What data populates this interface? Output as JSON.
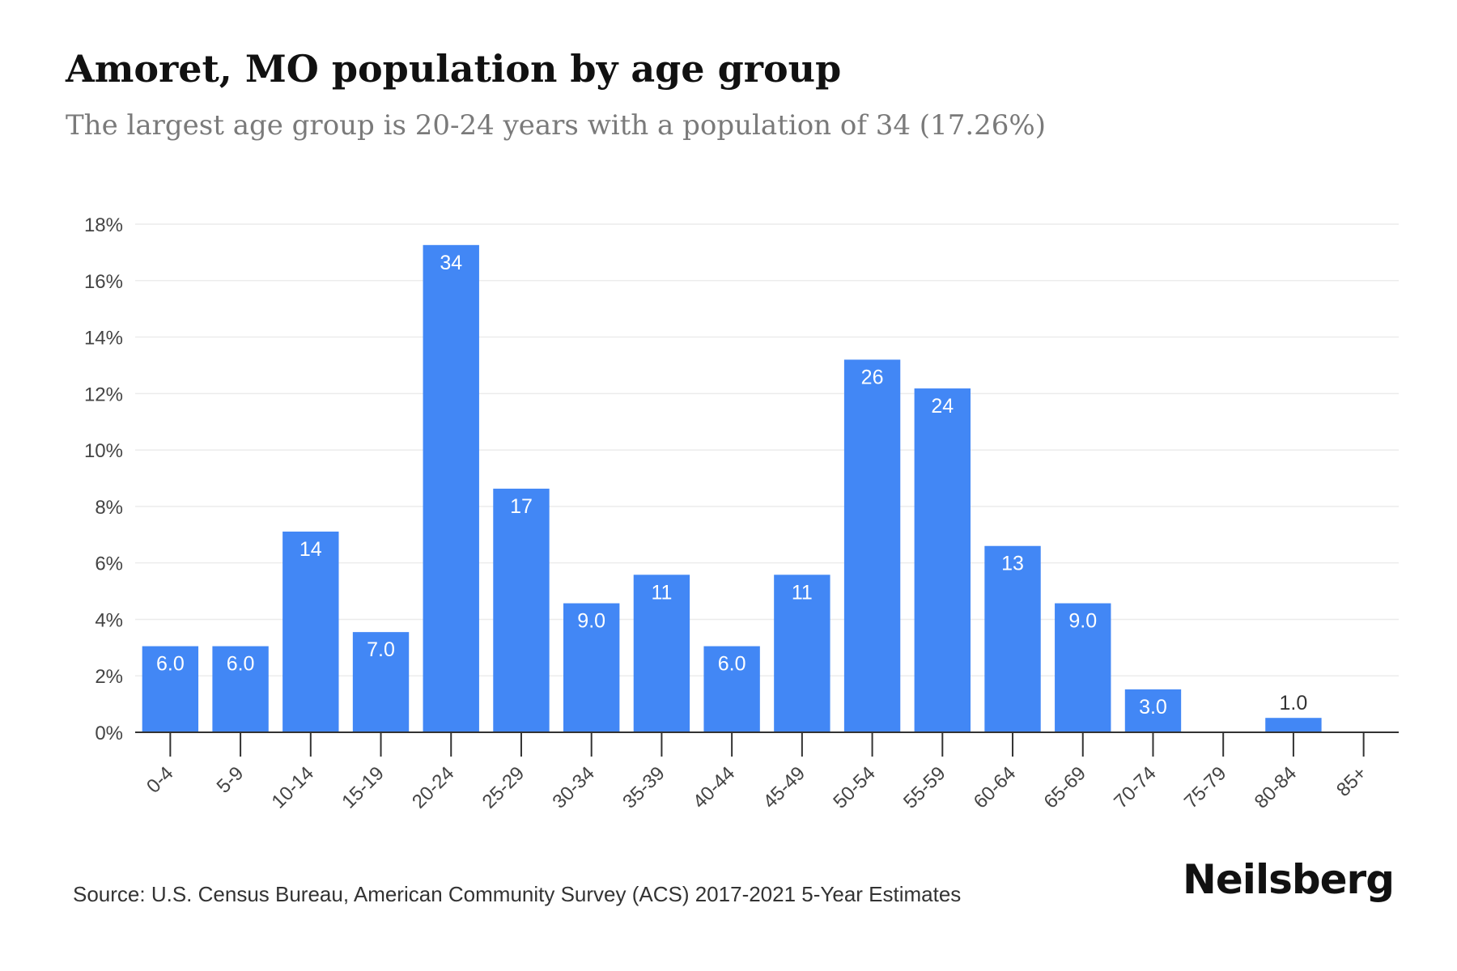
{
  "header": {
    "title": "Amoret, MO population by age group",
    "subtitle": "The largest age group is 20-24 years with a population of 34 (17.26%)"
  },
  "footer": {
    "source": "Source: U.S. Census Bureau, American Community Survey (ACS) 2017-2021 5-Year Estimates",
    "brand": "Neilsberg"
  },
  "colors": {
    "bar": "#4287f5",
    "grid": "#ececec",
    "axis": "#333333",
    "label_inside": "#ffffff",
    "label_outside": "#333333"
  },
  "chart_data": {
    "type": "bar",
    "title": "Amoret, MO population by age group",
    "subtitle": "The largest age group is 20-24 years with a population of 34 (17.26%)",
    "xlabel": "",
    "ylabel": "",
    "categories": [
      "0-4",
      "5-9",
      "10-14",
      "15-19",
      "20-24",
      "25-29",
      "30-34",
      "35-39",
      "40-44",
      "45-49",
      "50-54",
      "55-59",
      "60-64",
      "65-69",
      "70-74",
      "75-79",
      "80-84",
      "85+"
    ],
    "series": [
      {
        "values_percent": [
          3.05,
          3.05,
          7.11,
          3.55,
          17.26,
          8.63,
          4.57,
          5.58,
          3.05,
          5.58,
          13.2,
          12.18,
          6.6,
          4.57,
          1.52,
          0,
          0.51,
          0
        ],
        "data_labels": [
          "6.0",
          "6.0",
          "14",
          "7.0",
          "34",
          "17",
          "9.0",
          "11",
          "6.0",
          "11",
          "26",
          "24",
          "13",
          "9.0",
          "3.0",
          "",
          "1.0",
          ""
        ]
      }
    ],
    "ylim": [
      0,
      18
    ],
    "yticks": [
      0,
      2,
      4,
      6,
      8,
      10,
      12,
      14,
      16,
      18
    ],
    "ytick_labels": [
      "0%",
      "2%",
      "4%",
      "6%",
      "8%",
      "10%",
      "12%",
      "14%",
      "16%",
      "18%"
    ],
    "grid": true,
    "legend": "none"
  }
}
